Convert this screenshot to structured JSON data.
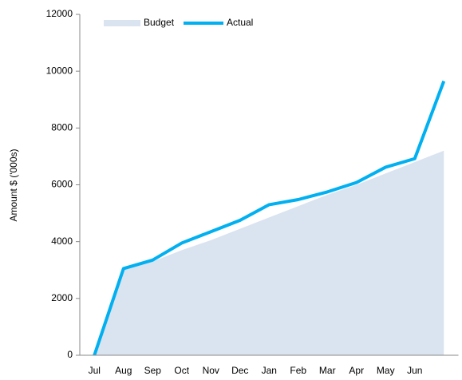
{
  "chart_data": {
    "type": "area-line",
    "y_label": "Amount $ ('000s)",
    "categories": [
      "Jul",
      "Aug",
      "Sep",
      "Oct",
      "Nov",
      "Dec",
      "Jan",
      "Feb",
      "Mar",
      "Apr",
      "May",
      "Jun",
      null
    ],
    "series": [
      {
        "name": "Budget",
        "kind": "area",
        "color": "#dae3f0",
        "values": [
          0,
          3000,
          3300,
          3700,
          4050,
          4450,
          4850,
          5250,
          5650,
          6000,
          6400,
          6800,
          7200
        ]
      },
      {
        "name": "Actual",
        "kind": "line",
        "color": "#00b0f0",
        "values": [
          0,
          3050,
          3350,
          3950,
          4350,
          4750,
          5300,
          5480,
          5750,
          6080,
          6620,
          6920,
          9650
        ]
      }
    ],
    "ylim": [
      0,
      12000
    ],
    "yticks": [
      0,
      2000,
      4000,
      6000,
      8000,
      10000,
      12000
    ],
    "grid": false,
    "legend": "top"
  }
}
